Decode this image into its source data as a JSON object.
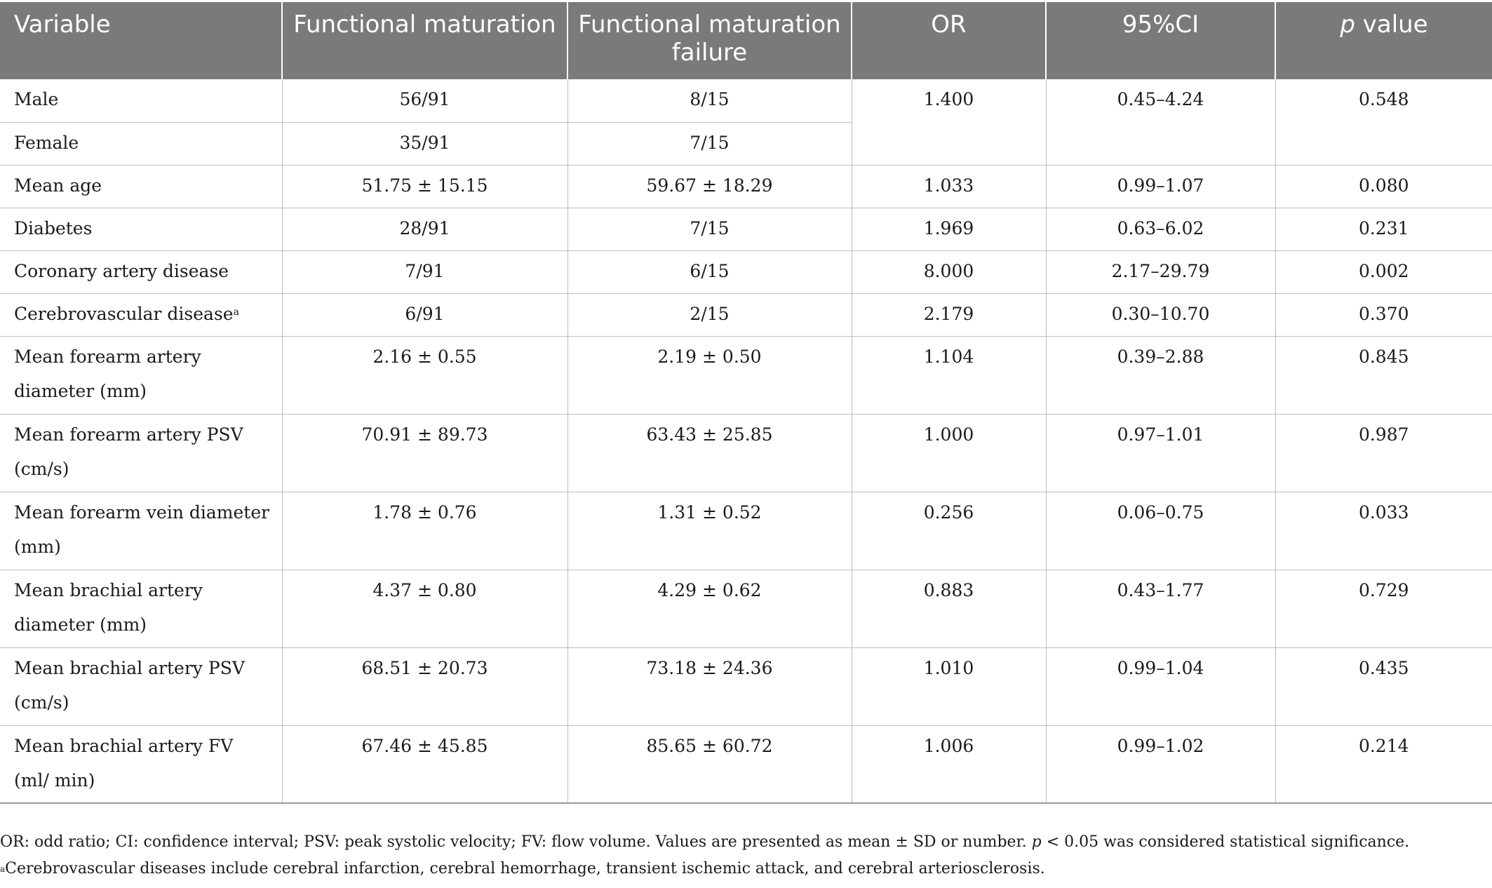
{
  "table": {
    "headers": [
      "Variable",
      "Functional maturation",
      "Functional maturation failure",
      "OR",
      "95%CI",
      "value"
    ],
    "p_value_prefix": "p",
    "rows": [
      {
        "variable": "Male",
        "fm": "56/91",
        "fmf": "8/15",
        "or": "1.400",
        "ci": "0.45–4.24",
        "p": "0.548"
      },
      {
        "variable": "Female",
        "fm": "35/91",
        "fmf": "7/15"
      },
      {
        "variable": "Mean age",
        "fm": "51.75 ± 15.15",
        "fmf": "59.67 ± 18.29",
        "or": "1.033",
        "ci": "0.99–1.07",
        "p": "0.080"
      },
      {
        "variable": "Diabetes",
        "fm": "28/91",
        "fmf": "7/15",
        "or": "1.969",
        "ci": "0.63–6.02",
        "p": "0.231"
      },
      {
        "variable": "Coronary artery disease",
        "fm": "7/91",
        "fmf": "6/15",
        "or": "8.000",
        "ci": "2.17–29.79",
        "p": "0.002"
      },
      {
        "variable": "Cerebrovascular disease",
        "sup": "a",
        "fm": "6/91",
        "fmf": "2/15",
        "or": "2.179",
        "ci": "0.30–10.70",
        "p": "0.370"
      },
      {
        "variable": "Mean forearm artery diameter (mm)",
        "fm": "2.16 ± 0.55",
        "fmf": "2.19 ± 0.50",
        "or": "1.104",
        "ci": "0.39–2.88",
        "p": "0.845"
      },
      {
        "variable": "Mean forearm artery PSV (cm/s)",
        "fm": "70.91 ± 89.73",
        "fmf": "63.43 ± 25.85",
        "or": "1.000",
        "ci": "0.97–1.01",
        "p": "0.987"
      },
      {
        "variable": "Mean forearm vein diameter (mm)",
        "fm": "1.78 ± 0.76",
        "fmf": "1.31 ± 0.52",
        "or": "0.256",
        "ci": "0.06–0.75",
        "p": "0.033"
      },
      {
        "variable": "Mean brachial artery diameter (mm)",
        "fm": "4.37 ± 0.80",
        "fmf": "4.29 ± 0.62",
        "or": "0.883",
        "ci": "0.43–1.77",
        "p": "0.729"
      },
      {
        "variable": "Mean brachial artery PSV (cm/s)",
        "fm": "68.51 ± 20.73",
        "fmf": "73.18 ± 24.36",
        "or": "1.010",
        "ci": "0.99–1.04",
        "p": "0.435"
      },
      {
        "variable": "Mean brachial artery FV (ml/ min)",
        "fm": "67.46 ± 45.85",
        "fmf": "85.65 ± 60.72",
        "or": "1.006",
        "ci": "0.99–1.02",
        "p": "0.214"
      }
    ]
  },
  "notes": {
    "abbrev_pre": "OR: odd ratio; CI: confidence interval; PSV: peak systolic velocity; FV: flow volume. Values are presented as mean ± SD or number.",
    "p_symbol": "p",
    "abbrev_post": " < 0.05 was considered statistical significance.",
    "footnote_mark": "a",
    "footnote_text": "Cerebrovascular diseases include cerebral infarction, cerebral hemorrhage, transient ischemic attack, and cerebral arteriosclerosis."
  }
}
